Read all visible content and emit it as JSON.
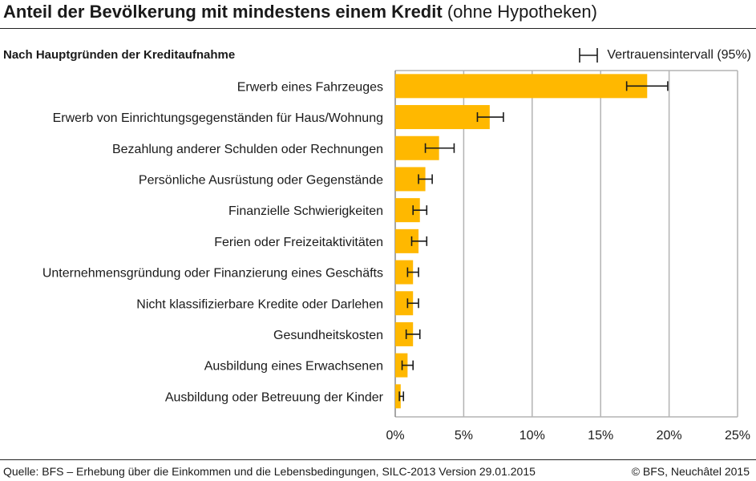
{
  "header": {
    "title_bold": "Anteil der Bevölkerung mit mindestens einem Kredit",
    "title_normal": "(ohne Hypotheken)"
  },
  "subtitle": "Nach Hauptgründen der Kreditaufnahme",
  "legend": {
    "label": "Vertrauensintervall (95%)"
  },
  "footer": {
    "source": "Quelle: BFS – Erhebung über die Einkommen und die Lebensbedingungen, SILC-2013 Version 29.01.2015",
    "copyright": "© BFS, Neuchâtel 2015"
  },
  "colors": {
    "bar": "#FFB800",
    "grid": "#b3b3b3",
    "error": "#1a1a1a"
  },
  "chart_data": {
    "type": "bar",
    "orientation": "horizontal",
    "categories": [
      "Erwerb eines Fahrzeuges",
      "Erwerb von Einrichtungsgegenständen für Haus/Wohnung",
      "Bezahlung anderer Schulden oder Rechnungen",
      "Persönliche Ausrüstung oder Gegenstände",
      "Finanzielle Schwierigkeiten",
      "Ferien oder Freizeitaktivitäten",
      "Unternehmensgründung oder Finanzierung eines Geschäfts",
      "Nicht klassifizierbare Kredite oder Darlehen",
      "Gesundheitskosten",
      "Ausbildung eines Erwachsenen",
      "Ausbildung oder Betreuung der Kinder"
    ],
    "values": [
      18.4,
      6.9,
      3.2,
      2.2,
      1.8,
      1.7,
      1.3,
      1.3,
      1.3,
      0.9,
      0.4
    ],
    "ci_low": [
      16.9,
      6.0,
      2.2,
      1.7,
      1.3,
      1.2,
      0.9,
      0.9,
      0.8,
      0.5,
      0.3
    ],
    "ci_high": [
      19.9,
      7.9,
      4.3,
      2.7,
      2.3,
      2.3,
      1.7,
      1.7,
      1.8,
      1.3,
      0.6
    ],
    "xlim": [
      0,
      25
    ],
    "xticks": [
      0,
      5,
      10,
      15,
      20,
      25
    ],
    "xtick_labels": [
      "0%",
      "5%",
      "10%",
      "15%",
      "20%",
      "25%"
    ],
    "grid": true
  }
}
